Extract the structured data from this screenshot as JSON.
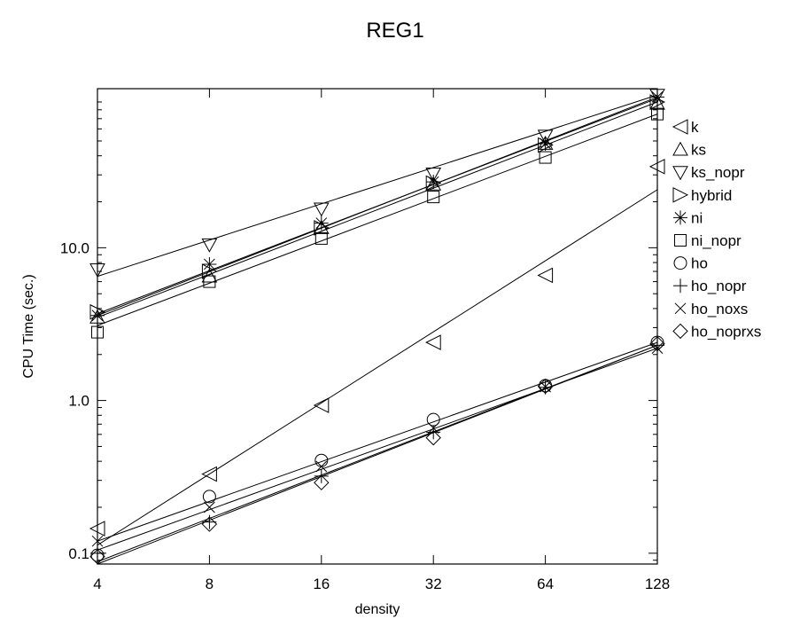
{
  "chart_data": {
    "type": "scatter",
    "title": "REG1",
    "xlabel": "density",
    "ylabel": "CPU Time (sec.)",
    "x_scale": "log2",
    "y_scale": "log10",
    "xlim": [
      4,
      128
    ],
    "ylim": [
      0.085,
      110
    ],
    "x_ticks": [
      4,
      8,
      16,
      32,
      64,
      128
    ],
    "x_tick_labels": [
      "4",
      "8",
      "16",
      "32",
      "64",
      "128"
    ],
    "y_ticks": [
      0.1,
      1.0,
      10.0
    ],
    "y_tick_labels": [
      "0.1",
      "1.0",
      "10.0"
    ],
    "legend_position": "right",
    "x": [
      4,
      8,
      16,
      32,
      64,
      128
    ],
    "series": [
      {
        "name": "k",
        "marker": "triangle-left",
        "values": [
          0.145,
          0.33,
          0.93,
          2.4,
          6.6,
          34
        ],
        "fit": [
          0.113,
          24.0
        ]
      },
      {
        "name": "ks",
        "marker": "triangle-up",
        "values": [
          3.5,
          6.5,
          13.5,
          26,
          48,
          88
        ],
        "fit": [
          3.5,
          90
        ]
      },
      {
        "name": "ks_nopr",
        "marker": "triangle-down",
        "values": [
          7.2,
          10.5,
          18,
          30.5,
          54,
          100
        ],
        "fit": [
          6.5,
          100
        ]
      },
      {
        "name": "hybrid",
        "marker": "triangle-right",
        "values": [
          3.8,
          7.0,
          13.5,
          26.5,
          47,
          90
        ],
        "fit": [
          3.7,
          95
        ]
      },
      {
        "name": "ni",
        "marker": "asterisk",
        "values": [
          3.6,
          7.8,
          14.5,
          27,
          48,
          97
        ],
        "fit": [
          3.6,
          97
        ]
      },
      {
        "name": "ni_nopr",
        "marker": "square",
        "values": [
          2.8,
          6.0,
          11.5,
          21.5,
          39,
          75
        ],
        "fit": [
          3.1,
          75
        ]
      },
      {
        "name": "ho",
        "marker": "circle",
        "values": [
          0.097,
          0.235,
          0.405,
          0.75,
          1.25,
          2.4
        ],
        "fit": [
          0.12,
          2.4
        ]
      },
      {
        "name": "ho_nopr",
        "marker": "plus",
        "values": [
          0.1,
          0.16,
          0.32,
          0.62,
          1.22,
          2.3
        ],
        "fit": [
          0.088,
          2.3
        ]
      },
      {
        "name": "ho_noxs",
        "marker": "cross",
        "values": [
          0.12,
          0.2,
          0.37,
          0.66,
          1.23,
          2.2
        ],
        "fit": [
          0.105,
          2.2
        ]
      },
      {
        "name": "ho_noprxs",
        "marker": "diamond",
        "values": [
          0.095,
          0.155,
          0.29,
          0.57,
          1.24,
          2.35
        ],
        "fit": [
          0.085,
          2.3
        ]
      }
    ]
  }
}
